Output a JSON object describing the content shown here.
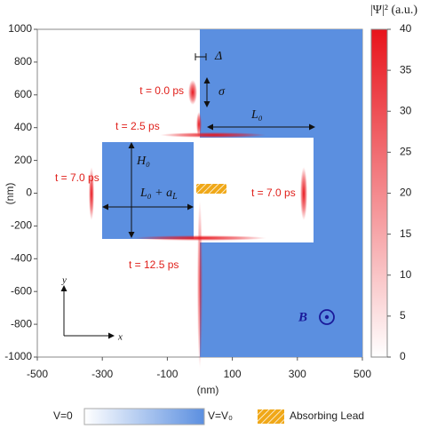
{
  "chart_data": {
    "type": "heatmap",
    "xlabel": "(nm)",
    "ylabel": "(nm)",
    "xlim": [
      -500,
      500
    ],
    "ylim": [
      -1000,
      1000
    ],
    "xticks": [
      -500,
      -300,
      -100,
      100,
      300,
      500
    ],
    "yticks": [
      -1000,
      -800,
      -600,
      -400,
      -200,
      0,
      200,
      400,
      600,
      800,
      1000
    ],
    "colorbar": {
      "title": "|Ψ|² (a.u.)",
      "clim": [
        0,
        40
      ],
      "ticks": [
        0,
        5,
        10,
        15,
        20,
        25,
        30,
        35,
        40
      ],
      "color": "#e8141c"
    },
    "snapshots": [
      "t = 0.0 ps",
      "t = 2.5 ps",
      "t = 7.0 ps",
      "t = 7.0 ps",
      "t = 12.5 ps"
    ],
    "annotations": {
      "delta": "Δ",
      "sigma": "σ",
      "L0": "L₀",
      "H0": "H₀",
      "L0aL": "L₀ + a",
      "L0aL_sub": "L",
      "B": "B",
      "axis_x": "x",
      "axis_y": "y"
    },
    "legend": {
      "v0": "V=0",
      "vV0": "V=V₀",
      "lead": "Absorbing Lead",
      "blue": "#5b8fe0",
      "lead_color": "#f0a818"
    }
  }
}
